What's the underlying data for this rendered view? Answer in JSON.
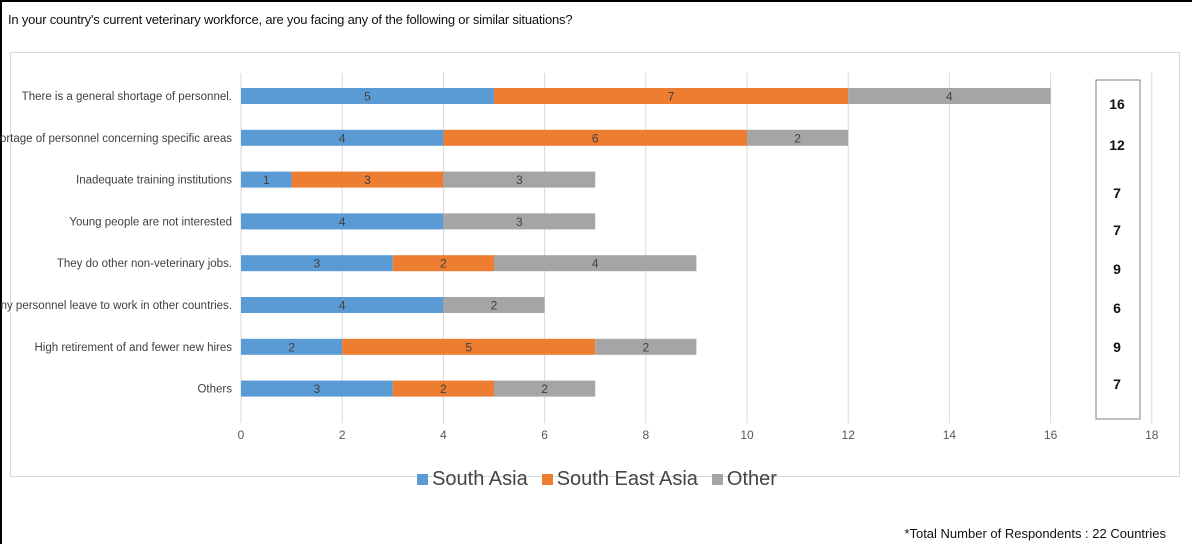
{
  "question": "In your country's current veterinary workforce, are you facing any of the following or similar situations?",
  "footnote": "*Total Number of Respondents : 22 Countries",
  "chart_data": {
    "type": "bar",
    "orientation": "horizontal",
    "stacked": true,
    "categories": [
      "There is a general shortage of personnel.",
      "Shortage of personnel concerning specific areas",
      "Inadequate training institutions",
      "Young people are not interested",
      "They do other non-veterinary jobs.",
      "Many personnel leave to work in other countries.",
      "High retirement of and fewer new hires",
      "Others"
    ],
    "series": [
      {
        "name": "South Asia",
        "color": "#5b9bd5",
        "values": [
          5,
          4,
          1,
          4,
          3,
          4,
          2,
          3
        ]
      },
      {
        "name": "South East Asia",
        "color": "#ed7d31",
        "values": [
          7,
          6,
          3,
          0,
          2,
          0,
          5,
          2
        ]
      },
      {
        "name": "Other",
        "color": "#a5a5a5",
        "values": [
          4,
          2,
          3,
          3,
          4,
          2,
          2,
          2
        ]
      }
    ],
    "totals": [
      16,
      12,
      7,
      7,
      9,
      6,
      9,
      7
    ],
    "xlim": [
      0,
      18
    ],
    "xticks": [
      0,
      2,
      4,
      6,
      8,
      10,
      12,
      14,
      16,
      18
    ],
    "grid": true,
    "legend_position": "bottom"
  }
}
